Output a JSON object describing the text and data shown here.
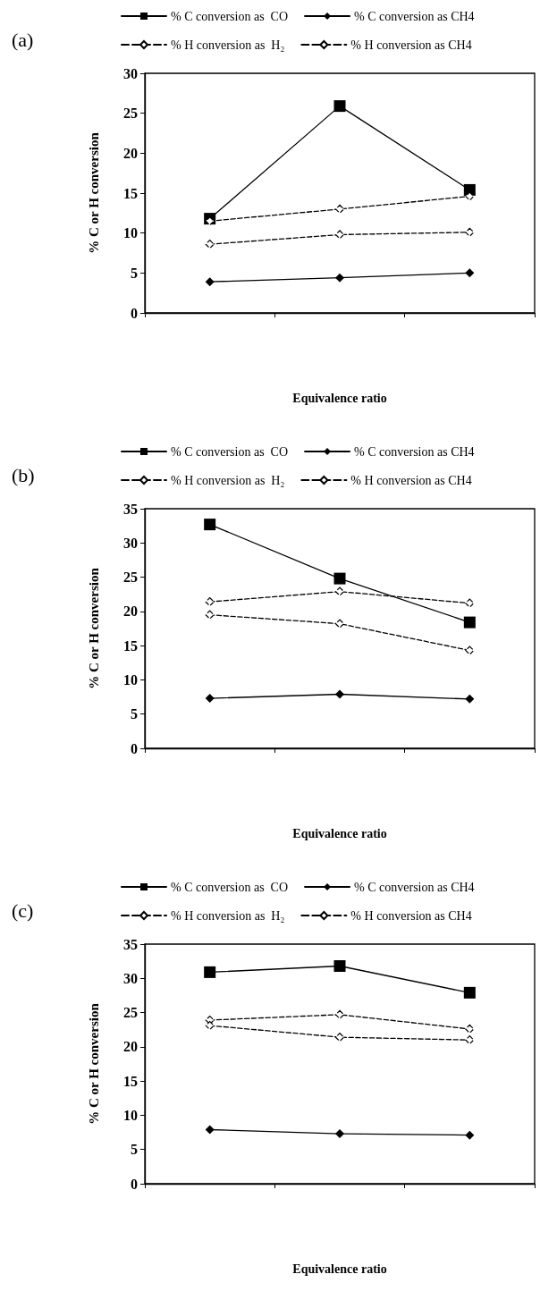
{
  "chart_data": [
    {
      "type": "line",
      "title": "(a)",
      "xlabel": "Equivalence ratio",
      "ylabel": "% C or H conversion",
      "categories": [
        null,
        null,
        null
      ],
      "ylim": [
        0,
        30
      ],
      "yticks": [
        0,
        5,
        10,
        15,
        20,
        25,
        30
      ],
      "grid": false,
      "legend": "top",
      "tick_labels": "y",
      "series": [
        {
          "name": "% C conversion as  CO",
          "color": "#000000",
          "marker": "square",
          "line_style": "solid",
          "values": [
            11.8,
            25.9,
            15.4
          ]
        },
        {
          "name": "% C conversion as CH4",
          "color": "#000000",
          "marker": "diamond",
          "line_style": "solid",
          "values": [
            3.9,
            4.4,
            5.0
          ]
        },
        {
          "name": "% H conversion as  H₂",
          "color": "#000000",
          "marker": "diamond",
          "line_style": "dashed",
          "values": [
            11.5,
            13.0,
            14.6
          ]
        },
        {
          "name": "% H conversion as CH4",
          "color": "#000000",
          "marker": "diamond",
          "line_style": "dashed",
          "values": [
            8.6,
            9.8,
            10.1
          ]
        }
      ]
    },
    {
      "type": "line",
      "title": "(b)",
      "xlabel": "Equivalence ratio",
      "ylabel": "% C or H conversion",
      "categories": [
        null,
        null,
        null
      ],
      "ylim": [
        0,
        35
      ],
      "yticks": [
        0,
        5,
        10,
        15,
        20,
        25,
        30,
        35
      ],
      "grid": false,
      "legend": "top",
      "tick_labels": "y",
      "series": [
        {
          "name": "% C conversion as  CO",
          "color": "#000000",
          "marker": "square",
          "line_style": "solid",
          "values": [
            32.7,
            24.8,
            18.4
          ]
        },
        {
          "name": "% C conversion as CH4",
          "color": "#000000",
          "marker": "diamond",
          "line_style": "solid",
          "values": [
            7.3,
            7.9,
            7.2
          ]
        },
        {
          "name": "% H conversion as  H₂",
          "color": "#000000",
          "marker": "diamond",
          "line_style": "dashed",
          "values": [
            21.4,
            22.9,
            21.2
          ]
        },
        {
          "name": "% H conversion as CH4",
          "color": "#000000",
          "marker": "diamond",
          "line_style": "dashed",
          "values": [
            19.5,
            18.2,
            14.3
          ]
        }
      ]
    },
    {
      "type": "line",
      "title": "(c)",
      "xlabel": "Equivalence ratio",
      "ylabel": "% C or H conversion",
      "categories": [
        null,
        null,
        null
      ],
      "ylim": [
        0,
        35
      ],
      "yticks": [
        0,
        5,
        10,
        15,
        20,
        25,
        30,
        35
      ],
      "grid": false,
      "legend": "top",
      "tick_labels": "y",
      "series": [
        {
          "name": "% C conversion as  CO",
          "color": "#000000",
          "marker": "square",
          "line_style": "solid",
          "values": [
            30.9,
            31.8,
            27.9
          ]
        },
        {
          "name": "% C conversion as CH4",
          "color": "#000000",
          "marker": "diamond",
          "line_style": "solid",
          "values": [
            7.9,
            7.3,
            7.1
          ]
        },
        {
          "name": "% H conversion as  H₂",
          "color": "#000000",
          "marker": "diamond",
          "line_style": "dashed",
          "values": [
            23.9,
            24.7,
            22.6
          ]
        },
        {
          "name": "% H conversion as CH4",
          "color": "#000000",
          "marker": "diamond",
          "line_style": "dashed",
          "values": [
            23.1,
            21.4,
            21.0
          ]
        }
      ]
    }
  ]
}
